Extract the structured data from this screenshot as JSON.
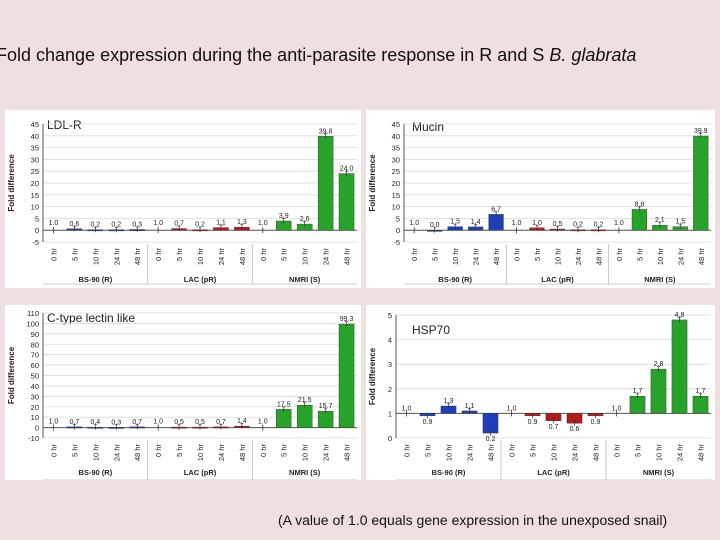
{
  "page": {
    "title_prefix": "Fold change expression during the anti-parasite response in R and S ",
    "title_italic": "B. glabrata",
    "footnote": "(A value of 1.0 equals gene expression in the unexposed snail)"
  },
  "colors": {
    "blue": "#1f3fb8",
    "red": "#b31c1c",
    "green": "#27a32a",
    "grid": "#d9d9d9"
  },
  "chart_data": [
    {
      "type": "bar",
      "title": "LDL-R",
      "ylabel": "Fold difference",
      "ylim": [
        -5,
        45
      ],
      "yticks": [
        "-5",
        "0",
        "5",
        "10",
        "15",
        "20",
        "25",
        "30",
        "35",
        "40",
        "45"
      ],
      "categories": [
        "0 hr",
        "5 hr",
        "10 hr",
        "24 hr",
        "48 hr",
        "0 hr",
        "5 hr",
        "10 hr",
        "24 hr",
        "48 hr",
        "0 hr",
        "5 hr",
        "10 hr",
        "24 hr",
        "48 hr"
      ],
      "groups": [
        "BS-90 (R)",
        "LAC (pR)",
        "NMRI (S)"
      ],
      "values": [
        1.0,
        0.6,
        0.2,
        0.2,
        0.3,
        1.0,
        0.7,
        0.2,
        1.1,
        1.3,
        1.0,
        3.9,
        2.6,
        39.8,
        24.0
      ],
      "labels": [
        "1.0",
        "0.6",
        "0.2",
        "0.2",
        "0.3",
        "1.0",
        "0.7",
        "0.2",
        "1.1",
        "1.3",
        "1.0",
        "3.9",
        "2.6",
        "39.8",
        "24.0"
      ]
    },
    {
      "type": "bar",
      "title": "Mucin",
      "ylabel": "Fold difference",
      "ylim": [
        -5,
        45
      ],
      "yticks": [
        "-5",
        "0",
        "5",
        "10",
        "15",
        "20",
        "25",
        "30",
        "35",
        "40",
        "45"
      ],
      "categories": [
        "0 hr",
        "5 hr",
        "10 hr",
        "24 hr",
        "48 hr",
        "0 hr",
        "5 hr",
        "10 hr",
        "24 hr",
        "48 hr",
        "0 hr",
        "5 hr",
        "10 hr",
        "24 hr",
        "48 hr"
      ],
      "groups": [
        "BS-90 (R)",
        "LAC (pR)",
        "NMRI (S)"
      ],
      "values": [
        1.0,
        0.0,
        1.5,
        1.4,
        6.7,
        1.0,
        1.0,
        0.5,
        0.2,
        0.2,
        1.0,
        8.8,
        2.1,
        1.5,
        39.9
      ],
      "labels": [
        "1.0",
        "0.0",
        "1.5",
        "1.4",
        "6.7",
        "1.0",
        "1.0",
        "0.5",
        "0.2",
        "0.2",
        "1.0",
        "8.8",
        "2.1",
        "1.5",
        "39.9"
      ]
    },
    {
      "type": "bar",
      "title": "C-type lectin like",
      "ylabel": "Fold difference",
      "ylim": [
        -10,
        110
      ],
      "yticks": [
        "-10",
        "0",
        "10",
        "20",
        "30",
        "40",
        "50",
        "60",
        "70",
        "80",
        "90",
        "100",
        "110"
      ],
      "categories": [
        "0 hr",
        "5 hr",
        "10 hr",
        "24 hr",
        "48 hr",
        "0 hr",
        "5 hr",
        "10 hr",
        "24 hr",
        "48 hr",
        "0 hr",
        "5 hr",
        "10 hr",
        "24 hr",
        "48 hr"
      ],
      "groups": [
        "BS-90 (R)",
        "LAC (pR)",
        "NMRI (S)"
      ],
      "values": [
        1.0,
        0.7,
        0.4,
        0.3,
        0.7,
        1.0,
        0.5,
        0.5,
        0.7,
        1.4,
        1.0,
        17.5,
        21.5,
        15.7,
        99.3
      ],
      "labels": [
        "1.0",
        "0.7",
        "0.4",
        "0.3",
        "0.7",
        "1.0",
        "0.5",
        "0.5",
        "0.7",
        "1.4",
        "1.0",
        "17.5",
        "21.5",
        "15.7",
        "99.3"
      ]
    },
    {
      "type": "bar",
      "title": "HSP70",
      "ylabel": "Fold difference",
      "ylim": [
        0,
        5
      ],
      "baseline": 1,
      "yticks": [
        "0",
        "1",
        "2",
        "3",
        "4",
        "5"
      ],
      "categories": [
        "0 hr",
        "5 hr",
        "10 hr",
        "24 hr",
        "48 hr",
        "0 hr",
        "5 hr",
        "10 hr",
        "24 hr",
        "48 hr",
        "0 hr",
        "5 hr",
        "10 hr",
        "24 hr",
        "48 hr"
      ],
      "groups": [
        "BS-90 (R)",
        "LAC (pR)",
        "NMRI (S)"
      ],
      "values": [
        1.0,
        0.9,
        1.3,
        1.1,
        0.2,
        1.0,
        0.9,
        0.7,
        0.6,
        0.9,
        1.0,
        1.7,
        2.8,
        4.8,
        1.7
      ],
      "labels": [
        "1.0",
        "0.9",
        "1.3",
        "1.1",
        "0.2",
        "1.0",
        "0.9",
        "0.7",
        "0.6",
        "0.9",
        "1.0",
        "1.7",
        "2.8",
        "4.8",
        "1.7"
      ]
    }
  ]
}
